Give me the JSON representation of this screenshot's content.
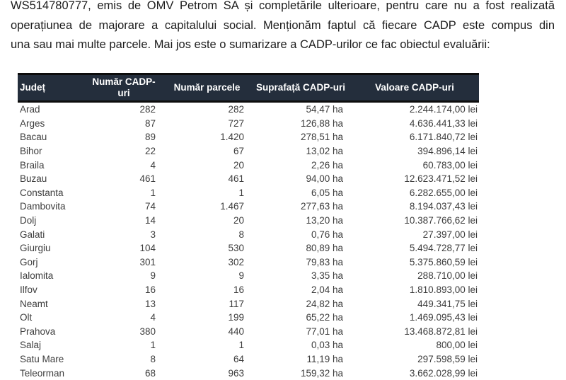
{
  "document": {
    "paragraph_lines": [
      "WS514780777, emis de OMV Petrom SA și completările ulterioare, pentru care nu a fost realizată",
      "operațiunea de majorare a capitalului social. Menționăm faptul că fiecare CADP este compus din",
      "una sau mai multe parcele. Mai jos este o sumarizare  a CADP-urilor ce fac obiectul evaluării:"
    ]
  },
  "table": {
    "columns": [
      "Județ",
      "Număr CADP-uri",
      "Număr parcele",
      "Suprafață CADP-uri",
      "Valoare CADP-uri"
    ],
    "rows": [
      [
        "Arad",
        "282",
        "282",
        "54,47 ha",
        "2.244.174,00 lei"
      ],
      [
        "Arges",
        "87",
        "727",
        "126,88 ha",
        "4.636.441,33 lei"
      ],
      [
        "Bacau",
        "89",
        "1.420",
        "278,51 ha",
        "6.171.840,72 lei"
      ],
      [
        "Bihor",
        "22",
        "67",
        "13,02 ha",
        "394.896,14 lei"
      ],
      [
        "Braila",
        "4",
        "20",
        "2,26 ha",
        "60.783,00 lei"
      ],
      [
        "Buzau",
        "461",
        "461",
        "94,00 ha",
        "12.623.471,52 lei"
      ],
      [
        "Constanta",
        "1",
        "1",
        "6,05 ha",
        "6.282.655,00 lei"
      ],
      [
        "Dambovita",
        "74",
        "1.467",
        "277,63 ha",
        "8.194.037,43 lei"
      ],
      [
        "Dolj",
        "14",
        "20",
        "13,20 ha",
        "10.387.766,62 lei"
      ],
      [
        "Galati",
        "3",
        "8",
        "0,76 ha",
        "27.397,00 lei"
      ],
      [
        "Giurgiu",
        "104",
        "530",
        "80,89 ha",
        "5.494.728,77 lei"
      ],
      [
        "Gorj",
        "301",
        "302",
        "79,83 ha",
        "5.375.860,59 lei"
      ],
      [
        "Ialomita",
        "9",
        "9",
        "3,35 ha",
        "288.710,00 lei"
      ],
      [
        "Ilfov",
        "16",
        "16",
        "2,04 ha",
        "1.810.893,00 lei"
      ],
      [
        "Neamt",
        "13",
        "117",
        "24,82 ha",
        "449.341,75 lei"
      ],
      [
        "Olt",
        "4",
        "199",
        "65,22 ha",
        "1.469.095,43 lei"
      ],
      [
        "Prahova",
        "380",
        "440",
        "77,01 ha",
        "13.468.872,81 lei"
      ],
      [
        "Salaj",
        "1",
        "1",
        "0,03 ha",
        "800,00 lei"
      ],
      [
        "Satu Mare",
        "8",
        "64",
        "11,19 ha",
        "297.598,59 lei"
      ],
      [
        "Teleorman",
        "68",
        "963",
        "159,32 ha",
        "3.662.028,99 lei"
      ]
    ]
  },
  "colors": {
    "header_bg": "#242e3c",
    "header_text": "#ffffff",
    "header_border": "#0d0d0d",
    "body_text": "#3d3d3d"
  }
}
